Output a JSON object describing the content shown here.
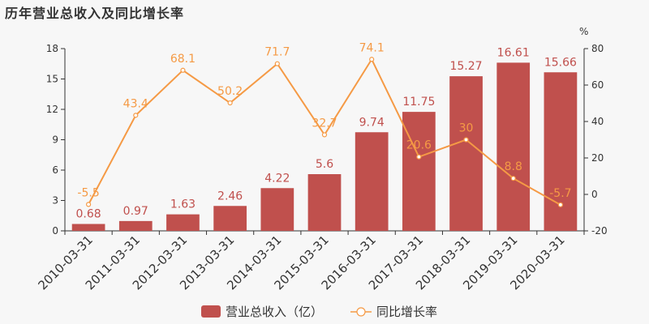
{
  "chart_data": {
    "type": "bar",
    "title": "历年营业总收入及同比增长率",
    "categories": [
      "2010-03-31",
      "2011-03-31",
      "2012-03-31",
      "2013-03-31",
      "2014-03-31",
      "2015-03-31",
      "2016-03-31",
      "2017-03-31",
      "2018-03-31",
      "2019-03-31",
      "2020-03-31"
    ],
    "series": [
      {
        "name": "营业总收入（亿）",
        "type": "bar",
        "axis": "left",
        "color": "#c0504d",
        "values": [
          0.68,
          0.97,
          1.63,
          2.46,
          4.22,
          5.6,
          9.74,
          11.75,
          15.27,
          16.61,
          15.66
        ]
      },
      {
        "name": "同比增长率",
        "type": "line",
        "axis": "right",
        "color": "#f59a45",
        "values": [
          -5.5,
          43.4,
          68.1,
          50.2,
          71.7,
          32.7,
          74.1,
          20.6,
          30,
          8.8,
          -5.7
        ]
      }
    ],
    "left_axis": {
      "ylim": [
        0,
        18
      ],
      "ticks": [
        0,
        3,
        6,
        9,
        12,
        15,
        18
      ]
    },
    "right_axis": {
      "unit": "%",
      "ylim": [
        -20,
        80
      ],
      "ticks": [
        -20,
        0,
        20,
        40,
        60,
        80
      ]
    },
    "legend_position": "bottom-center",
    "grid": false
  }
}
